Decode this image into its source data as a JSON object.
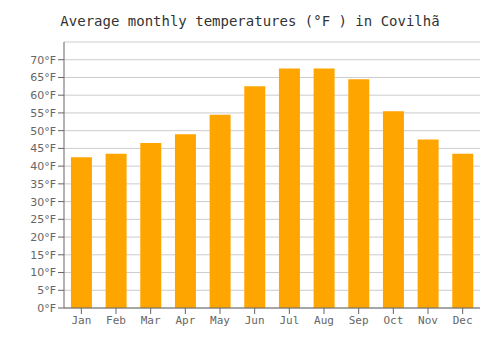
{
  "chart_data": {
    "type": "bar",
    "title": "Average monthly temperatures (°F ) in Covilhã",
    "categories": [
      "Jan",
      "Feb",
      "Mar",
      "Apr",
      "May",
      "Jun",
      "Jul",
      "Aug",
      "Sep",
      "Oct",
      "Nov",
      "Dec"
    ],
    "values": [
      42.5,
      43.5,
      46.5,
      49.0,
      54.5,
      62.5,
      67.5,
      67.5,
      64.5,
      55.5,
      47.5,
      43.5
    ],
    "color": "#FFA500",
    "ylim": [
      0,
      75
    ],
    "yticks": [
      {
        "value": 0,
        "label": "0°F"
      },
      {
        "value": 5,
        "label": "5°F"
      },
      {
        "value": 10,
        "label": "10°F"
      },
      {
        "value": 15,
        "label": "15°F"
      },
      {
        "value": 20,
        "label": "20°F"
      },
      {
        "value": 25,
        "label": "25°F"
      },
      {
        "value": 30,
        "label": "30°F"
      },
      {
        "value": 35,
        "label": "35°F"
      },
      {
        "value": 40,
        "label": "40°F"
      },
      {
        "value": 45,
        "label": "45°F"
      },
      {
        "value": 50,
        "label": "50°F"
      },
      {
        "value": 55,
        "label": "55°F"
      },
      {
        "value": 60,
        "label": "60°F"
      },
      {
        "value": 65,
        "label": "65°F"
      },
      {
        "value": 70,
        "label": "70°F"
      }
    ],
    "grid": true
  }
}
